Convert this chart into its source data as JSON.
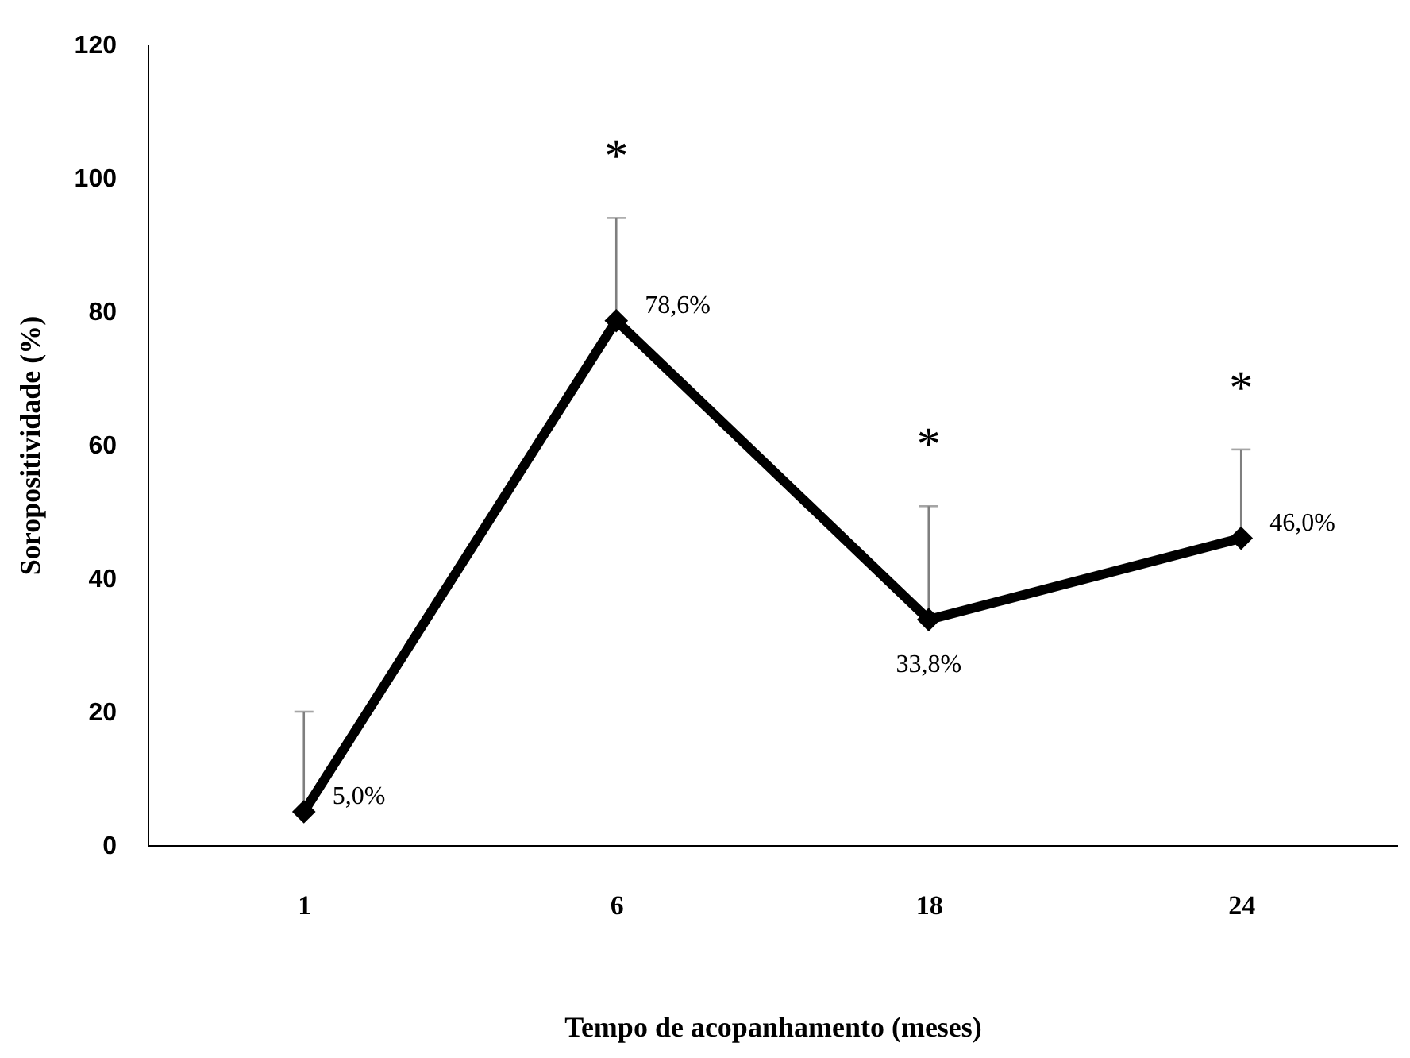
{
  "chart_data": {
    "type": "line",
    "xlabel": "Tempo de acopanhamento (meses)",
    "ylabel": "Soropositividade (%)",
    "categories": [
      "1",
      "6",
      "18",
      "24"
    ],
    "series": [
      {
        "color": "#000000",
        "values": [
          5.0,
          78.6,
          33.8,
          46.0
        ],
        "errors": [
          [
            5.0,
            20
          ],
          [
            78.6,
            94
          ],
          [
            33.8,
            50.8
          ],
          [
            46.0,
            59.3
          ]
        ],
        "value_labels": [
          "5,0%",
          "78,6%",
          "33,8%",
          "46,0%"
        ]
      }
    ],
    "ylim": [
      0,
      120
    ],
    "yticks": [
      0,
      20,
      40,
      60,
      80,
      100,
      120
    ],
    "grid": false,
    "marker": "diamond",
    "line_style": "solid",
    "annotations": [
      "*",
      "*",
      "*"
    ]
  }
}
